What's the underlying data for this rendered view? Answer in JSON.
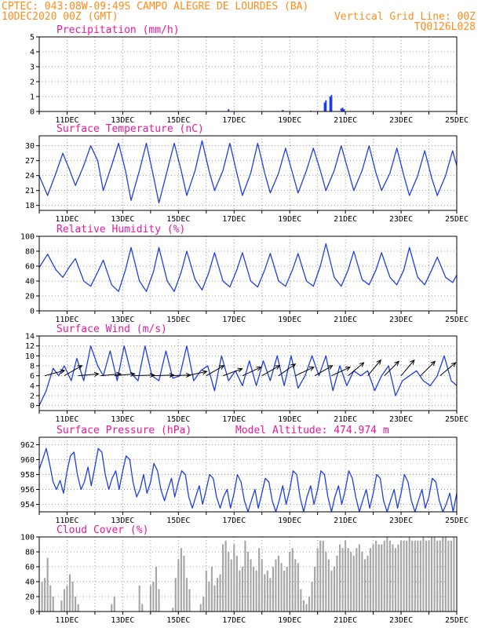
{
  "header": {
    "line1_left": "CPTEC:  043:08W-09:49S  CAMPO ALEGRE DE LOURDES (BA)",
    "line2_left": "10DEC2020 00Z (GMT)",
    "line2_right": "Vertical Grid Line: 00Z",
    "line3_right": "TQ0126L028"
  },
  "colors": {
    "header": "#ff8c1a",
    "panel_title": "#e6199e",
    "series": "#1f3fe6",
    "cloud": "#a6a6a6",
    "wind_arrow": "#000000"
  },
  "x_axis": {
    "start_day": 10,
    "end_day": 25,
    "tick_labels": [
      "11DEC",
      "13DEC",
      "15DEC",
      "17DEC",
      "19DEC",
      "21DEC",
      "23DEC",
      "25DEC"
    ],
    "tick_days": [
      11,
      13,
      15,
      17,
      19,
      21,
      23,
      25
    ]
  },
  "chart_data": [
    {
      "type": "bar",
      "title": "Precipitation (mm/h)",
      "ylim": [
        0,
        5
      ],
      "yticks": [
        0,
        1,
        2,
        3,
        4,
        5
      ],
      "x": [
        16.8,
        18.75,
        19.75,
        20.25,
        20.3,
        20.45,
        20.5,
        20.85,
        20.9,
        20.95
      ],
      "values": [
        0.15,
        0.1,
        0.05,
        0.6,
        0.75,
        1.0,
        1.1,
        0.2,
        0.25,
        0.15
      ]
    },
    {
      "type": "line",
      "title": "Surface Temperature (nC)",
      "ylim": [
        17,
        32
      ],
      "yticks": [
        18,
        21,
        24,
        27,
        30
      ],
      "x": [
        10,
        10.3,
        10.6,
        10.85,
        11.1,
        11.3,
        11.6,
        11.85,
        12.1,
        12.3,
        12.6,
        12.85,
        13.1,
        13.3,
        13.6,
        13.85,
        14.1,
        14.3,
        14.6,
        14.85,
        15.1,
        15.3,
        15.6,
        15.85,
        16.1,
        16.3,
        16.6,
        16.85,
        17.1,
        17.3,
        17.6,
        17.85,
        18.1,
        18.3,
        18.6,
        18.85,
        19.1,
        19.3,
        19.6,
        19.85,
        20.1,
        20.3,
        20.6,
        20.85,
        21.1,
        21.3,
        21.6,
        21.85,
        22.1,
        22.3,
        22.6,
        22.85,
        23.1,
        23.3,
        23.6,
        23.85,
        24.1,
        24.3,
        24.6,
        24.85,
        25
      ],
      "values": [
        24,
        20,
        24.5,
        28.5,
        25,
        22,
        26,
        30,
        27,
        21,
        26,
        30.5,
        25,
        19,
        25,
        30.5,
        24,
        18.5,
        25,
        30.5,
        25,
        20,
        25,
        31,
        25,
        21,
        25,
        30.5,
        24.5,
        20,
        24.5,
        30.5,
        24.5,
        20.5,
        24.5,
        29.5,
        24.5,
        20.5,
        25,
        29.5,
        25,
        21,
        25,
        30,
        25,
        21,
        25,
        30,
        24.5,
        21,
        24.5,
        29.5,
        24,
        20,
        24,
        29,
        23.5,
        20,
        24,
        29,
        26
      ]
    },
    {
      "type": "line",
      "title": "Relative Humidity (%)",
      "ylim": [
        0,
        100
      ],
      "yticks": [
        0,
        20,
        40,
        60,
        80,
        100
      ],
      "x": [
        10,
        10.3,
        10.6,
        10.85,
        11.1,
        11.3,
        11.6,
        11.85,
        12.1,
        12.3,
        12.6,
        12.85,
        13.1,
        13.3,
        13.6,
        13.85,
        14.1,
        14.3,
        14.6,
        14.85,
        15.1,
        15.3,
        15.6,
        15.85,
        16.1,
        16.3,
        16.6,
        16.85,
        17.1,
        17.3,
        17.6,
        17.85,
        18.1,
        18.3,
        18.6,
        18.85,
        19.1,
        19.3,
        19.6,
        19.85,
        20.1,
        20.3,
        20.6,
        20.85,
        21.1,
        21.3,
        21.6,
        21.85,
        22.1,
        22.3,
        22.6,
        22.85,
        23.1,
        23.3,
        23.6,
        23.85,
        24.1,
        24.3,
        24.6,
        24.85,
        25
      ],
      "values": [
        58,
        76,
        55,
        45,
        60,
        70,
        40,
        33,
        52,
        68,
        35,
        26,
        55,
        85,
        40,
        26,
        52,
        85,
        40,
        26,
        52,
        80,
        42,
        28,
        52,
        78,
        40,
        32,
        55,
        78,
        40,
        32,
        55,
        77,
        40,
        33,
        55,
        77,
        40,
        33,
        60,
        90,
        45,
        33,
        55,
        80,
        42,
        35,
        55,
        78,
        45,
        35,
        55,
        85,
        45,
        35,
        55,
        72,
        45,
        38,
        48
      ]
    },
    {
      "type": "line",
      "title": "Surface Wind (m/s)",
      "ylim": [
        -1,
        14
      ],
      "yticks": [
        0,
        2,
        4,
        6,
        8,
        10,
        12,
        14
      ],
      "x": [
        10,
        10.25,
        10.5,
        10.7,
        10.9,
        11.15,
        11.35,
        11.6,
        11.85,
        12.1,
        12.3,
        12.55,
        12.8,
        13.05,
        13.3,
        13.55,
        13.8,
        14.05,
        14.3,
        14.55,
        14.8,
        15.05,
        15.3,
        15.55,
        15.8,
        16.05,
        16.3,
        16.55,
        16.8,
        17.05,
        17.3,
        17.55,
        17.8,
        18.05,
        18.3,
        18.55,
        18.8,
        19.05,
        19.3,
        19.55,
        19.8,
        20.05,
        20.3,
        20.55,
        20.8,
        21.05,
        21.3,
        21.55,
        21.8,
        22.05,
        22.3,
        22.55,
        22.8,
        23.05,
        23.3,
        23.55,
        23.8,
        24.05,
        24.3,
        24.55,
        24.8,
        25
      ],
      "values": [
        0,
        3,
        7.5,
        6,
        8,
        5,
        9.5,
        5,
        12,
        8,
        6,
        11,
        5,
        12,
        6.5,
        5,
        12,
        6,
        5,
        11,
        5.5,
        6,
        12,
        5,
        7,
        8,
        3,
        10,
        5,
        7,
        4,
        9,
        4,
        9,
        5,
        10,
        4,
        10,
        3.5,
        6,
        10,
        6,
        10,
        3,
        8,
        4,
        7,
        6,
        7,
        3,
        6,
        8,
        2,
        5,
        6,
        7,
        5,
        4,
        6,
        10,
        5,
        4
      ],
      "wind_arrows": [
        {
          "x": 10.2,
          "dir_deg": 255
        },
        {
          "x": 10.9,
          "dir_deg": 240
        },
        {
          "x": 11.4,
          "dir_deg": 265
        },
        {
          "x": 12.2,
          "dir_deg": 265
        },
        {
          "x": 12.7,
          "dir_deg": 265
        },
        {
          "x": 13.4,
          "dir_deg": 268
        },
        {
          "x": 14.1,
          "dir_deg": 268
        },
        {
          "x": 14.7,
          "dir_deg": 268
        },
        {
          "x": 15.3,
          "dir_deg": 258
        },
        {
          "x": 16.0,
          "dir_deg": 240
        },
        {
          "x": 16.6,
          "dir_deg": 250
        },
        {
          "x": 17.3,
          "dir_deg": 245
        },
        {
          "x": 18.0,
          "dir_deg": 240
        },
        {
          "x": 18.6,
          "dir_deg": 235
        },
        {
          "x": 19.2,
          "dir_deg": 245
        },
        {
          "x": 19.9,
          "dir_deg": 240
        },
        {
          "x": 20.5,
          "dir_deg": 245
        },
        {
          "x": 21.1,
          "dir_deg": 230
        },
        {
          "x": 21.8,
          "dir_deg": 220
        },
        {
          "x": 22.4,
          "dir_deg": 225
        },
        {
          "x": 23.0,
          "dir_deg": 220
        },
        {
          "x": 23.7,
          "dir_deg": 225
        },
        {
          "x": 24.4,
          "dir_deg": 230
        }
      ]
    },
    {
      "type": "line",
      "title": "Surface Pressure (hPa)",
      "subtitle": "Model Altitude: 474.974 m",
      "ylim": [
        953,
        963
      ],
      "yticks": [
        954,
        956,
        958,
        960,
        962
      ],
      "x": [
        10,
        10.12,
        10.25,
        10.37,
        10.5,
        10.62,
        10.75,
        10.87,
        11,
        11.12,
        11.25,
        11.37,
        11.5,
        11.62,
        11.75,
        11.87,
        12,
        12.12,
        12.25,
        12.37,
        12.5,
        12.62,
        12.75,
        12.87,
        13,
        13.12,
        13.25,
        13.37,
        13.5,
        13.62,
        13.75,
        13.87,
        14,
        14.12,
        14.25,
        14.37,
        14.5,
        14.62,
        14.75,
        14.87,
        15,
        15.12,
        15.25,
        15.37,
        15.5,
        15.62,
        15.75,
        15.87,
        16,
        16.12,
        16.25,
        16.37,
        16.5,
        16.62,
        16.75,
        16.87,
        17,
        17.12,
        17.25,
        17.37,
        17.5,
        17.62,
        17.75,
        17.87,
        18,
        18.12,
        18.25,
        18.37,
        18.5,
        18.62,
        18.75,
        18.87,
        19,
        19.12,
        19.25,
        19.37,
        19.5,
        19.62,
        19.75,
        19.87,
        20,
        20.12,
        20.25,
        20.37,
        20.5,
        20.62,
        20.75,
        20.87,
        21,
        21.12,
        21.25,
        21.37,
        21.5,
        21.62,
        21.75,
        21.87,
        22,
        22.12,
        22.25,
        22.37,
        22.5,
        22.62,
        22.75,
        22.87,
        23,
        23.12,
        23.25,
        23.37,
        23.5,
        23.62,
        23.75,
        23.87,
        24,
        24.12,
        24.25,
        24.37,
        24.5,
        24.62,
        24.75,
        24.87,
        25
      ],
      "values": [
        958.7,
        960,
        961.5,
        959.5,
        957,
        956,
        957.2,
        955.5,
        958.5,
        960.5,
        961,
        958,
        956,
        957,
        959,
        956.5,
        959,
        961.5,
        961,
        958,
        956,
        957.5,
        958.5,
        956,
        958.5,
        960.5,
        960,
        957,
        955,
        956,
        958,
        955.5,
        957,
        959.5,
        958.5,
        956,
        954.5,
        956,
        957.5,
        955,
        957,
        958.5,
        958,
        955,
        953.5,
        955,
        956.5,
        954,
        956,
        958,
        957.5,
        955,
        953.5,
        955,
        956,
        953.5,
        955.5,
        958,
        957,
        954.5,
        953,
        954.5,
        956,
        953.5,
        955.5,
        957.5,
        957,
        954.5,
        953,
        954.5,
        956.5,
        954,
        956,
        958.5,
        958,
        955,
        953,
        955,
        956.5,
        954,
        956,
        958.5,
        958,
        955,
        953,
        955,
        956.5,
        954,
        956,
        958.5,
        957.5,
        955,
        953,
        954.5,
        956,
        953.5,
        955.5,
        958,
        957.5,
        954.5,
        953,
        954.5,
        956,
        953.5,
        955.5,
        958,
        957,
        954.5,
        953,
        954.5,
        956,
        953.5,
        955,
        957.5,
        957,
        954.5,
        953,
        954,
        955.5,
        953,
        955.5
      ]
    },
    {
      "type": "bar",
      "title": "Cloud Cover (%)",
      "ylim": [
        0,
        100
      ],
      "yticks": [
        0,
        20,
        40,
        60,
        80,
        100
      ],
      "bar_width_days": 0.06,
      "x": [
        10.1,
        10.2,
        10.3,
        10.4,
        10.5,
        10.6,
        10.7,
        10.8,
        10.9,
        11.0,
        11.1,
        11.2,
        11.3,
        11.4,
        11.5,
        11.6,
        11.7,
        11.8,
        11.9,
        12.0,
        12.1,
        12.2,
        12.3,
        12.4,
        12.5,
        12.6,
        12.7,
        12.8,
        12.9,
        13.0,
        13.1,
        13.2,
        13.3,
        13.4,
        13.5,
        13.6,
        13.7,
        13.8,
        13.9,
        14.0,
        14.1,
        14.2,
        14.3,
        14.4,
        14.5,
        14.6,
        14.7,
        14.8,
        14.9,
        15.0,
        15.1,
        15.2,
        15.3,
        15.4,
        15.5,
        15.6,
        15.7,
        15.8,
        15.9,
        16.0,
        16.1,
        16.2,
        16.3,
        16.4,
        16.5,
        16.6,
        16.7,
        16.8,
        16.9,
        17.0,
        17.1,
        17.2,
        17.3,
        17.4,
        17.5,
        17.6,
        17.7,
        17.8,
        17.9,
        18.0,
        18.1,
        18.2,
        18.3,
        18.4,
        18.5,
        18.6,
        18.7,
        18.8,
        18.9,
        19.0,
        19.1,
        19.2,
        19.3,
        19.4,
        19.5,
        19.6,
        19.7,
        19.8,
        19.9,
        20.0,
        20.1,
        20.2,
        20.3,
        20.4,
        20.5,
        20.6,
        20.7,
        20.8,
        20.9,
        21.0,
        21.1,
        21.2,
        21.3,
        21.4,
        21.5,
        21.6,
        21.7,
        21.8,
        21.9,
        22.0,
        22.1,
        22.2,
        22.3,
        22.4,
        22.5,
        22.6,
        22.7,
        22.8,
        22.9,
        23.0,
        23.1,
        23.2,
        23.3,
        23.4,
        23.5,
        23.6,
        23.7,
        23.8,
        23.9,
        24.0,
        24.1,
        24.2,
        24.3,
        24.4,
        24.5,
        24.6,
        24.7,
        24.8,
        24.9
      ],
      "values": [
        40,
        45,
        72,
        35,
        20,
        0,
        0,
        15,
        30,
        35,
        50,
        40,
        20,
        10,
        0,
        0,
        0,
        0,
        0,
        0,
        0,
        0,
        0,
        0,
        0,
        10,
        20,
        0,
        0,
        0,
        0,
        0,
        0,
        0,
        0,
        35,
        10,
        0,
        0,
        35,
        40,
        60,
        30,
        0,
        0,
        0,
        0,
        5,
        45,
        70,
        85,
        75,
        45,
        30,
        0,
        0,
        0,
        10,
        20,
        55,
        40,
        60,
        35,
        45,
        50,
        90,
        95,
        80,
        70,
        90,
        75,
        55,
        60,
        95,
        80,
        70,
        60,
        55,
        85,
        70,
        50,
        55,
        45,
        60,
        70,
        75,
        65,
        55,
        60,
        80,
        85,
        70,
        65,
        30,
        15,
        10,
        20,
        40,
        60,
        85,
        95,
        95,
        80,
        70,
        55,
        60,
        75,
        90,
        85,
        95,
        85,
        80,
        75,
        85,
        90,
        80,
        70,
        75,
        85,
        90,
        95,
        90,
        90,
        95,
        100,
        95,
        90,
        85,
        90,
        95,
        95,
        95,
        100,
        95,
        95,
        95,
        95,
        100,
        95,
        95,
        100,
        100,
        95,
        95,
        100,
        100,
        95,
        95,
        100
      ]
    }
  ]
}
